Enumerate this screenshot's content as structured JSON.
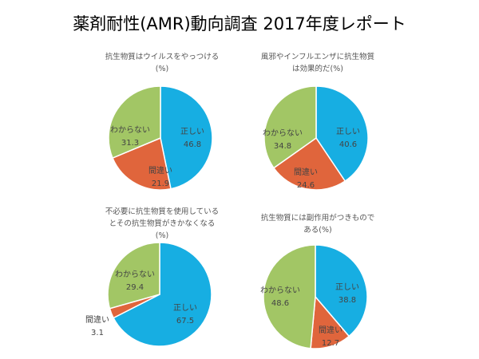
{
  "page_title": "薬剤耐性(AMR)動向調査 2017年度レポート",
  "colors": {
    "correct": "#17aee2",
    "wrong": "#e0653c",
    "unknown": "#a2c665"
  },
  "chart_data": [
    {
      "type": "pie",
      "title": [
        "抗生物質はウイルスをやっつける",
        "(%)"
      ],
      "slices": [
        {
          "label": "正しい",
          "value": 46.8,
          "value_text": "46.8",
          "color": "#17aee2"
        },
        {
          "label": "間違い",
          "value": 21.9,
          "value_text": "21.9",
          "color": "#e0653c"
        },
        {
          "label": "わからない",
          "value": 31.3,
          "value_text": "31.3",
          "color": "#a2c665"
        }
      ]
    },
    {
      "type": "pie",
      "title": [
        "風邪やインフルエンザに抗生物質",
        "は効果的だ(%)"
      ],
      "slices": [
        {
          "label": "正しい",
          "value": 40.6,
          "value_text": "40.6",
          "color": "#17aee2"
        },
        {
          "label": "間違い",
          "value": 24.6,
          "value_text": "24.6",
          "color": "#e0653c"
        },
        {
          "label": "わからない",
          "value": 34.8,
          "value_text": "34.8",
          "color": "#a2c665"
        }
      ]
    },
    {
      "type": "pie",
      "title": [
        "不必要に抗生物質を使用している",
        "とその抗生物質がきかなくなる",
        "(%)"
      ],
      "slices": [
        {
          "label": "正しい",
          "value": 67.5,
          "value_text": "67.5",
          "color": "#17aee2"
        },
        {
          "label": "間違い",
          "value": 3.1,
          "value_text": "3.1",
          "color": "#e0653c"
        },
        {
          "label": "わからない",
          "value": 29.4,
          "value_text": "29.4",
          "color": "#a2c665"
        }
      ]
    },
    {
      "type": "pie",
      "title": [
        "抗生物質には副作用がつきもので",
        "ある(%)"
      ],
      "slices": [
        {
          "label": "正しい",
          "value": 38.8,
          "value_text": "38.8",
          "color": "#17aee2"
        },
        {
          "label": "間違い",
          "value": 12.7,
          "value_text": "12.7",
          "color": "#e0653c"
        },
        {
          "label": "わからない",
          "value": 48.6,
          "value_text": "48.6",
          "color": "#a2c665"
        }
      ]
    }
  ]
}
